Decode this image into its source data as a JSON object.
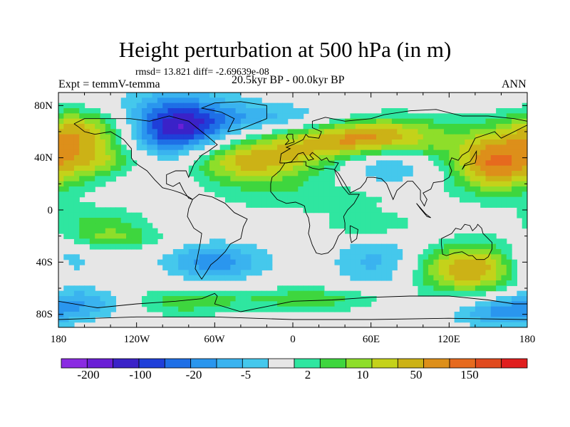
{
  "title": "Height perturbation at 500 hPa (in m)",
  "stats": "rmsd= 13.821  diff= -2.69639e-08",
  "experiment": "Expt = temmV-temma",
  "period": "20.5kyr BP - 00.0kyr BP",
  "season": "ANN",
  "axes": {
    "y_ticks": [
      "80N",
      "40N",
      "0",
      "40S",
      "80S"
    ],
    "x_ticks": [
      "180",
      "120W",
      "60W",
      "0",
      "60E",
      "120E",
      "180"
    ]
  },
  "colorbar": {
    "colors": [
      "#8a2be2",
      "#6a1fd6",
      "#3a22c8",
      "#1f3fd9",
      "#1e6fe6",
      "#2a96ee",
      "#3ab3ef",
      "#45c8ec",
      "#e6e6e6",
      "#2fe6a0",
      "#3ed63e",
      "#8ede2a",
      "#c4d21a",
      "#ccb216",
      "#dd8f1a",
      "#e66a1e",
      "#e04a1e",
      "#e01e1e"
    ],
    "labels": [
      "-200",
      "-100",
      "-20",
      "-5",
      "2",
      "10",
      "50",
      "150"
    ]
  },
  "field": {
    "blobs": [
      {
        "lon": -90,
        "lat": 60,
        "rlon": 50,
        "rlat": 30,
        "level": -3.2
      },
      {
        "lon": -85,
        "lat": 62,
        "rlon": 28,
        "rlat": 18,
        "level": -1.0
      },
      {
        "lon": -160,
        "lat": 60,
        "rlon": 40,
        "rlat": 18,
        "level": 3.0
      },
      {
        "lon": -140,
        "lat": 38,
        "rlon": 30,
        "rlat": 12,
        "level": 1.5
      },
      {
        "lon": -40,
        "lat": 38,
        "rlon": 55,
        "rlat": 18,
        "level": 3.5
      },
      {
        "lon": 55,
        "lat": 55,
        "rlon": 65,
        "rlat": 18,
        "level": 3.8
      },
      {
        "lon": 70,
        "lat": 35,
        "rlon": 35,
        "rlat": 15,
        "level": -2.0
      },
      {
        "lon": 150,
        "lat": 35,
        "rlon": 30,
        "rlat": 22,
        "level": 3.0
      },
      {
        "lon": -175,
        "lat": 35,
        "rlon": 35,
        "rlat": 22,
        "level": 1.8
      },
      {
        "lon": 0,
        "lat": 70,
        "rlon": 60,
        "rlat": 12,
        "level": -1.6
      },
      {
        "lon": 20,
        "lat": 10,
        "rlon": 90,
        "rlat": 15,
        "level": 0.9
      },
      {
        "lon": -150,
        "lat": -8,
        "rlon": 40,
        "rlat": 12,
        "level": 1.2
      },
      {
        "lon": 60,
        "lat": -12,
        "rlon": 35,
        "rlat": 9,
        "level": 1.3
      },
      {
        "lon": -175,
        "lat": -40,
        "rlon": 25,
        "rlat": 20,
        "level": -1.8
      },
      {
        "lon": -140,
        "lat": -22,
        "rlon": 40,
        "rlat": 9,
        "level": 1.6
      },
      {
        "lon": -60,
        "lat": -40,
        "rlon": 40,
        "rlat": 15,
        "level": -2.0
      },
      {
        "lon": 75,
        "lat": -42,
        "rlon": 40,
        "rlat": 22,
        "level": -2.2
      },
      {
        "lon": 130,
        "lat": -45,
        "rlon": 55,
        "rlat": 20,
        "level": 3.6
      },
      {
        "lon": -150,
        "lat": -70,
        "rlon": 45,
        "rlat": 12,
        "level": -2.0
      },
      {
        "lon": -100,
        "lat": -70,
        "rlon": 60,
        "rlat": 12,
        "level": 1.8
      },
      {
        "lon": 20,
        "lat": -68,
        "rlon": 60,
        "rlat": 10,
        "level": 1.5
      },
      {
        "lon": 160,
        "lat": -78,
        "rlon": 40,
        "rlat": 12,
        "level": -1.8
      }
    ]
  },
  "coastlines": [
    [
      [
        -168,
        66
      ],
      [
        -160,
        70
      ],
      [
        -140,
        70
      ],
      [
        -125,
        70
      ],
      [
        -110,
        68
      ],
      [
        -95,
        72
      ],
      [
        -80,
        68
      ],
      [
        -70,
        60
      ],
      [
        -65,
        56
      ],
      [
        -58,
        50
      ],
      [
        -65,
        45
      ],
      [
        -70,
        42
      ],
      [
        -76,
        35
      ],
      [
        -80,
        25
      ],
      [
        -82,
        30
      ],
      [
        -90,
        30
      ],
      [
        -97,
        27
      ],
      [
        -97,
        20
      ],
      [
        -92,
        18
      ],
      [
        -87,
        21
      ],
      [
        -84,
        15
      ],
      [
        -80,
        9
      ],
      [
        -77,
        8
      ],
      [
        -80,
        10
      ],
      [
        -86,
        13
      ],
      [
        -92,
        15
      ],
      [
        -100,
        17
      ],
      [
        -106,
        23
      ],
      [
        -112,
        30
      ],
      [
        -118,
        34
      ],
      [
        -122,
        37
      ],
      [
        -124,
        40
      ],
      [
        -124,
        47
      ],
      [
        -130,
        54
      ],
      [
        -140,
        60
      ],
      [
        -152,
        58
      ],
      [
        -160,
        60
      ],
      [
        -165,
        64
      ],
      [
        -168,
        66
      ]
    ],
    [
      [
        -77,
        8
      ],
      [
        -72,
        12
      ],
      [
        -62,
        10
      ],
      [
        -52,
        5
      ],
      [
        -45,
        -2
      ],
      [
        -35,
        -7
      ],
      [
        -38,
        -13
      ],
      [
        -40,
        -22
      ],
      [
        -48,
        -26
      ],
      [
        -52,
        -32
      ],
      [
        -58,
        -38
      ],
      [
        -63,
        -42
      ],
      [
        -66,
        -47
      ],
      [
        -70,
        -53
      ],
      [
        -72,
        -50
      ],
      [
        -75,
        -45
      ],
      [
        -73,
        -35
      ],
      [
        -71,
        -25
      ],
      [
        -70,
        -18
      ],
      [
        -76,
        -14
      ],
      [
        -81,
        -5
      ],
      [
        -80,
        1
      ],
      [
        -77,
        8
      ]
    ],
    [
      [
        -50,
        60
      ],
      [
        -45,
        70
      ],
      [
        -55,
        75
      ],
      [
        -70,
        78
      ],
      [
        -60,
        82
      ],
      [
        -40,
        83
      ],
      [
        -20,
        80
      ],
      [
        -20,
        70
      ],
      [
        -40,
        62
      ],
      [
        -50,
        60
      ]
    ],
    [
      [
        -10,
        36
      ],
      [
        -9,
        43
      ],
      [
        -2,
        47
      ],
      [
        -5,
        48
      ],
      [
        2,
        51
      ],
      [
        8,
        54
      ],
      [
        10,
        58
      ],
      [
        12,
        56
      ],
      [
        20,
        55
      ],
      [
        22,
        60
      ],
      [
        15,
        63
      ],
      [
        15,
        68
      ],
      [
        25,
        71
      ],
      [
        40,
        68
      ],
      [
        60,
        70
      ],
      [
        70,
        73
      ],
      [
        90,
        76
      ],
      [
        110,
        77
      ],
      [
        130,
        72
      ],
      [
        150,
        72
      ],
      [
        170,
        70
      ],
      [
        180,
        68
      ]
    ],
    [
      [
        180,
        65
      ],
      [
        170,
        60
      ],
      [
        160,
        55
      ],
      [
        155,
        60
      ],
      [
        140,
        55
      ],
      [
        135,
        45
      ],
      [
        130,
        42
      ],
      [
        127,
        38
      ],
      [
        122,
        40
      ],
      [
        120,
        35
      ],
      [
        122,
        30
      ],
      [
        120,
        25
      ],
      [
        115,
        22
      ],
      [
        108,
        21
      ],
      [
        106,
        16
      ],
      [
        100,
        13
      ],
      [
        103,
        8
      ],
      [
        101,
        3
      ],
      [
        98,
        8
      ],
      [
        98,
        15
      ],
      [
        92,
        22
      ],
      [
        88,
        22
      ],
      [
        80,
        15
      ],
      [
        77,
        8
      ],
      [
        72,
        20
      ],
      [
        68,
        24
      ],
      [
        62,
        25
      ],
      [
        57,
        25
      ],
      [
        56,
        22
      ],
      [
        52,
        17
      ],
      [
        44,
        13
      ],
      [
        40,
        20
      ],
      [
        35,
        28
      ],
      [
        32,
        31
      ],
      [
        35,
        36
      ],
      [
        28,
        37
      ],
      [
        26,
        40
      ],
      [
        22,
        38
      ],
      [
        20,
        40
      ],
      [
        15,
        44
      ],
      [
        13,
        42
      ],
      [
        16,
        39
      ],
      [
        12,
        38
      ],
      [
        8,
        44
      ],
      [
        4,
        43
      ],
      [
        -1,
        37
      ],
      [
        -5,
        36
      ],
      [
        -10,
        36
      ]
    ],
    [
      [
        -6,
        36
      ],
      [
        -10,
        30
      ],
      [
        -16,
        25
      ],
      [
        -17,
        20
      ],
      [
        -17,
        14
      ],
      [
        -12,
        8
      ],
      [
        -5,
        5
      ],
      [
        2,
        6
      ],
      [
        7,
        4
      ],
      [
        9,
        3
      ],
      [
        10,
        -2
      ],
      [
        12,
        -6
      ],
      [
        13,
        -12
      ],
      [
        12,
        -18
      ],
      [
        15,
        -27
      ],
      [
        18,
        -33
      ],
      [
        22,
        -34
      ],
      [
        27,
        -33
      ],
      [
        31,
        -29
      ],
      [
        33,
        -25
      ],
      [
        35,
        -20
      ],
      [
        40,
        -15
      ],
      [
        40,
        -10
      ],
      [
        39,
        -5
      ],
      [
        42,
        0
      ],
      [
        47,
        5
      ],
      [
        51,
        12
      ],
      [
        43,
        12
      ],
      [
        38,
        18
      ],
      [
        33,
        28
      ],
      [
        32,
        31
      ],
      [
        25,
        32
      ],
      [
        20,
        31
      ],
      [
        15,
        32
      ],
      [
        10,
        34
      ],
      [
        10,
        37
      ],
      [
        3,
        37
      ],
      [
        -6,
        36
      ]
    ],
    [
      [
        44,
        -12
      ],
      [
        50,
        -15
      ],
      [
        49,
        -22
      ],
      [
        45,
        -25
      ],
      [
        44,
        -20
      ],
      [
        44,
        -12
      ]
    ],
    [
      [
        114,
        -22
      ],
      [
        114,
        -26
      ],
      [
        115,
        -34
      ],
      [
        118,
        -35
      ],
      [
        124,
        -33
      ],
      [
        130,
        -32
      ],
      [
        135,
        -35
      ],
      [
        138,
        -35
      ],
      [
        141,
        -38
      ],
      [
        147,
        -38
      ],
      [
        150,
        -36
      ],
      [
        153,
        -30
      ],
      [
        153,
        -25
      ],
      [
        150,
        -22
      ],
      [
        146,
        -18
      ],
      [
        145,
        -14
      ],
      [
        142,
        -11
      ],
      [
        141,
        -13
      ],
      [
        138,
        -16
      ],
      [
        136,
        -12
      ],
      [
        132,
        -11
      ],
      [
        129,
        -15
      ],
      [
        125,
        -14
      ],
      [
        122,
        -18
      ],
      [
        114,
        -22
      ]
    ],
    [
      [
        95,
        5
      ],
      [
        102,
        -3
      ],
      [
        106,
        -6
      ],
      [
        103,
        -5
      ],
      [
        98,
        1
      ],
      [
        95,
        5
      ]
    ],
    [
      [
        130,
        31
      ],
      [
        132,
        34
      ],
      [
        136,
        35
      ],
      [
        140,
        36
      ],
      [
        141,
        40
      ],
      [
        141,
        45
      ],
      [
        138,
        40
      ],
      [
        136,
        37
      ],
      [
        132,
        35
      ],
      [
        130,
        31
      ]
    ],
    [
      [
        -6,
        50
      ],
      [
        -3,
        53
      ],
      [
        -5,
        56
      ],
      [
        -4,
        58
      ],
      [
        0,
        58
      ],
      [
        0,
        55
      ],
      [
        1,
        52
      ],
      [
        -6,
        50
      ]
    ],
    [
      [
        -180,
        -70
      ],
      [
        -150,
        -75
      ],
      [
        -120,
        -72
      ],
      [
        -90,
        -70
      ],
      [
        -70,
        -68
      ],
      [
        -60,
        -64
      ],
      [
        -58,
        -66
      ],
      [
        -60,
        -72
      ],
      [
        -40,
        -78
      ],
      [
        -20,
        -74
      ],
      [
        0,
        -70
      ],
      [
        30,
        -69
      ],
      [
        60,
        -67
      ],
      [
        90,
        -66
      ],
      [
        120,
        -66
      ],
      [
        150,
        -69
      ],
      [
        170,
        -72
      ],
      [
        180,
        -72
      ]
    ],
    [
      [
        -180,
        -84
      ],
      [
        -120,
        -82
      ],
      [
        -60,
        -82
      ],
      [
        0,
        -84
      ],
      [
        60,
        -84
      ],
      [
        120,
        -83
      ],
      [
        180,
        -84
      ]
    ]
  ]
}
